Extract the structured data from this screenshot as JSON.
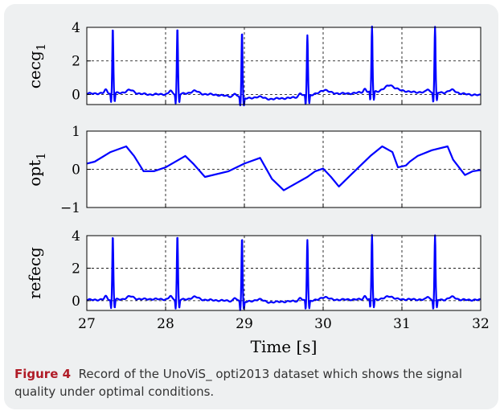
{
  "caption": {
    "label": "Figure 4",
    "text": "Record of the UnoViS_ opti2013 dataset which shows the signal quality under optimal conditions.",
    "label_color": "#b01b27"
  },
  "chart_data": [
    {
      "type": "line",
      "ylabel": "cecg",
      "ylabel_sub": "1",
      "xlim": [
        27,
        32
      ],
      "ylim": [
        -0.6,
        4.0
      ],
      "yticks": [
        0,
        2,
        4
      ],
      "xticks": [
        27,
        28,
        29,
        30,
        31,
        32
      ],
      "grid": true,
      "color": "#0000ff",
      "beats": [
        27.33,
        28.15,
        28.97,
        29.8,
        30.62,
        31.42
      ],
      "peak_values": [
        3.9,
        3.95,
        3.95,
        3.6,
        3.9,
        3.9
      ],
      "baseline": [
        [
          27,
          0.05
        ],
        [
          27.5,
          0.1
        ],
        [
          27.8,
          0.0
        ],
        [
          28.3,
          0.05
        ],
        [
          28.6,
          0.0
        ],
        [
          29.2,
          -0.3
        ],
        [
          29.6,
          -0.2
        ],
        [
          30.0,
          0.1
        ],
        [
          30.3,
          0.05
        ],
        [
          30.7,
          0.2
        ],
        [
          30.85,
          0.4
        ],
        [
          31.1,
          0.15
        ],
        [
          31.6,
          0.1
        ],
        [
          32,
          -0.05
        ]
      ]
    },
    {
      "type": "line",
      "ylabel": "opt",
      "ylabel_sub": "1",
      "xlim": [
        27,
        32
      ],
      "ylim": [
        -1,
        1
      ],
      "yticks": [
        -1,
        0,
        1
      ],
      "xticks": [
        27,
        28,
        29,
        30,
        31,
        32
      ],
      "grid": true,
      "color": "#0000ff",
      "x": [
        27,
        27.1,
        27.3,
        27.5,
        27.6,
        27.72,
        27.85,
        28.0,
        28.25,
        28.35,
        28.5,
        28.8,
        29.0,
        29.2,
        29.35,
        29.5,
        29.8,
        29.9,
        30.0,
        30.1,
        30.2,
        30.35,
        30.6,
        30.75,
        30.88,
        30.95,
        31.05,
        31.1,
        31.2,
        31.38,
        31.58,
        31.65,
        31.8,
        31.9,
        32.0
      ],
      "y": [
        0.15,
        0.2,
        0.45,
        0.6,
        0.35,
        -0.05,
        -0.05,
        0.05,
        0.35,
        0.15,
        -0.2,
        -0.05,
        0.15,
        0.3,
        -0.25,
        -0.55,
        -0.2,
        -0.05,
        0.02,
        -0.2,
        -0.45,
        -0.15,
        0.35,
        0.6,
        0.45,
        0.05,
        0.1,
        0.2,
        0.35,
        0.5,
        0.6,
        0.25,
        -0.15,
        -0.05,
        -0.02
      ]
    },
    {
      "type": "line",
      "ylabel": "refecg",
      "ylabel_sub": "",
      "xlabel": "Time [s]",
      "xlim": [
        27,
        32
      ],
      "ylim": [
        -0.6,
        4.0
      ],
      "yticks": [
        0,
        2,
        4
      ],
      "xticks": [
        27,
        28,
        29,
        30,
        31,
        32
      ],
      "grid": true,
      "color": "#0000ff",
      "beats": [
        27.33,
        28.15,
        28.97,
        29.8,
        30.62,
        31.42
      ],
      "peak_values": [
        3.95,
        3.95,
        3.95,
        3.75,
        3.95,
        3.95
      ],
      "baseline": [
        [
          27,
          0.05
        ],
        [
          27.8,
          0.1
        ],
        [
          28.5,
          0.05
        ],
        [
          29.3,
          -0.1
        ],
        [
          30.0,
          0.05
        ],
        [
          30.8,
          0.1
        ],
        [
          31.5,
          0.05
        ],
        [
          32,
          0.05
        ]
      ]
    }
  ]
}
